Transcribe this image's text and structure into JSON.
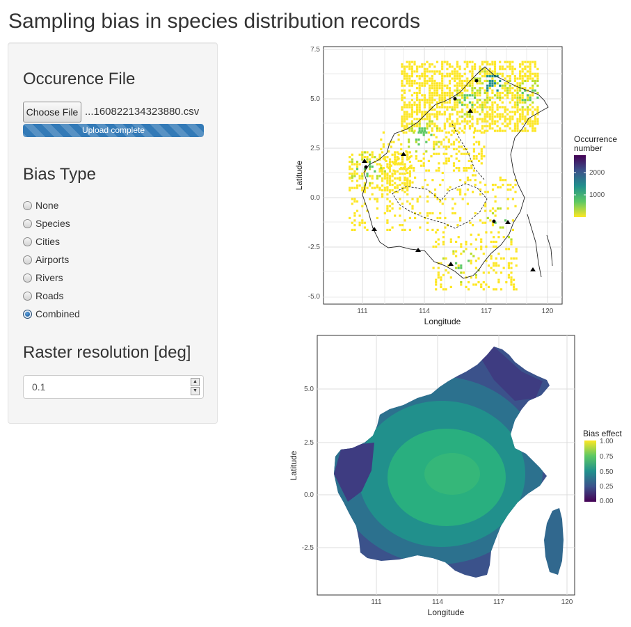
{
  "page": {
    "title": "Sampling bias in species distribution records"
  },
  "sidebar": {
    "occurrence_heading": "Occurence File",
    "choose_file_label": "Choose File",
    "file_name": "...160822134323880.csv",
    "upload_status": "Upload complete",
    "upload_progress": 1.0,
    "bias_heading": "Bias Type",
    "bias_options": [
      {
        "label": "None",
        "checked": false
      },
      {
        "label": "Species",
        "checked": false
      },
      {
        "label": "Cities",
        "checked": false
      },
      {
        "label": "Airports",
        "checked": false
      },
      {
        "label": "Rivers",
        "checked": false
      },
      {
        "label": "Roads",
        "checked": false
      },
      {
        "label": "Combined",
        "checked": true
      }
    ],
    "resolution_heading": "Raster resolution [deg]",
    "resolution_value": "0.1"
  },
  "colors": {
    "accent": "#337ab7",
    "viridis": [
      "#440154",
      "#3b528b",
      "#21908c",
      "#5dc863",
      "#fde725"
    ],
    "map_outline": "#222222"
  },
  "chart_data": [
    {
      "type": "heatmap",
      "name": "occurrence-map",
      "title": "",
      "xlabel": "Longitude",
      "ylabel": "Latitude",
      "x_ticks": [
        111,
        114,
        117,
        120
      ],
      "y_ticks": [
        7.5,
        5.0,
        2.5,
        0.0,
        -2.5,
        -5.0
      ],
      "x_tick_labels": [
        "111",
        "114",
        "117",
        "120"
      ],
      "y_tick_labels": [
        "7.5",
        "5.0",
        "2.5",
        "0.0",
        "-2.5",
        "-5.0"
      ],
      "xlim": [
        108.3,
        119.7
      ],
      "ylim": [
        -5.3,
        7.7
      ],
      "grid": true,
      "legend": {
        "title_lines": [
          "Occurrence",
          "number"
        ],
        "ticks": [
          1000,
          2000
        ],
        "tick_labels": [
          "1000",
          "2000"
        ],
        "range": [
          0,
          2800
        ],
        "position": "right"
      },
      "hotspots": [
        {
          "lon": 116.3,
          "lat": 5.9,
          "value": 2500
        },
        {
          "lon": 115.2,
          "lat": 4.9,
          "value": 1800
        },
        {
          "lon": 110.3,
          "lat": 1.6,
          "value": 1600
        },
        {
          "lon": 113.0,
          "lat": 3.2,
          "value": 1200
        },
        {
          "lon": 118.1,
          "lat": 5.3,
          "value": 900
        },
        {
          "lon": 116.8,
          "lat": -1.2,
          "value": 800
        },
        {
          "lon": 114.8,
          "lat": -3.3,
          "value": 700
        }
      ]
    },
    {
      "type": "heatmap",
      "name": "bias-map",
      "title": "",
      "xlabel": "Longitude",
      "ylabel": "Latitude",
      "x_ticks": [
        111,
        114,
        117,
        120
      ],
      "y_ticks": [
        5.0,
        2.5,
        0.0,
        -2.5
      ],
      "x_tick_labels": [
        "111",
        "114",
        "117",
        "120"
      ],
      "y_tick_labels": [
        "5.0",
        "2.5",
        "0.0",
        "-2.5"
      ],
      "xlim": [
        108.3,
        119.8
      ],
      "ylim": [
        -4.7,
        7.5
      ],
      "grid": true,
      "legend": {
        "title": "Bias effect",
        "ticks": [
          1.0,
          0.75,
          0.5,
          0.25,
          0.0
        ],
        "tick_labels": [
          "1.00",
          "0.75",
          "0.50",
          "0.25",
          "0.00"
        ],
        "range": [
          0,
          1
        ],
        "position": "right"
      },
      "peak_value": 0.65,
      "coast_value": 0.15
    }
  ]
}
